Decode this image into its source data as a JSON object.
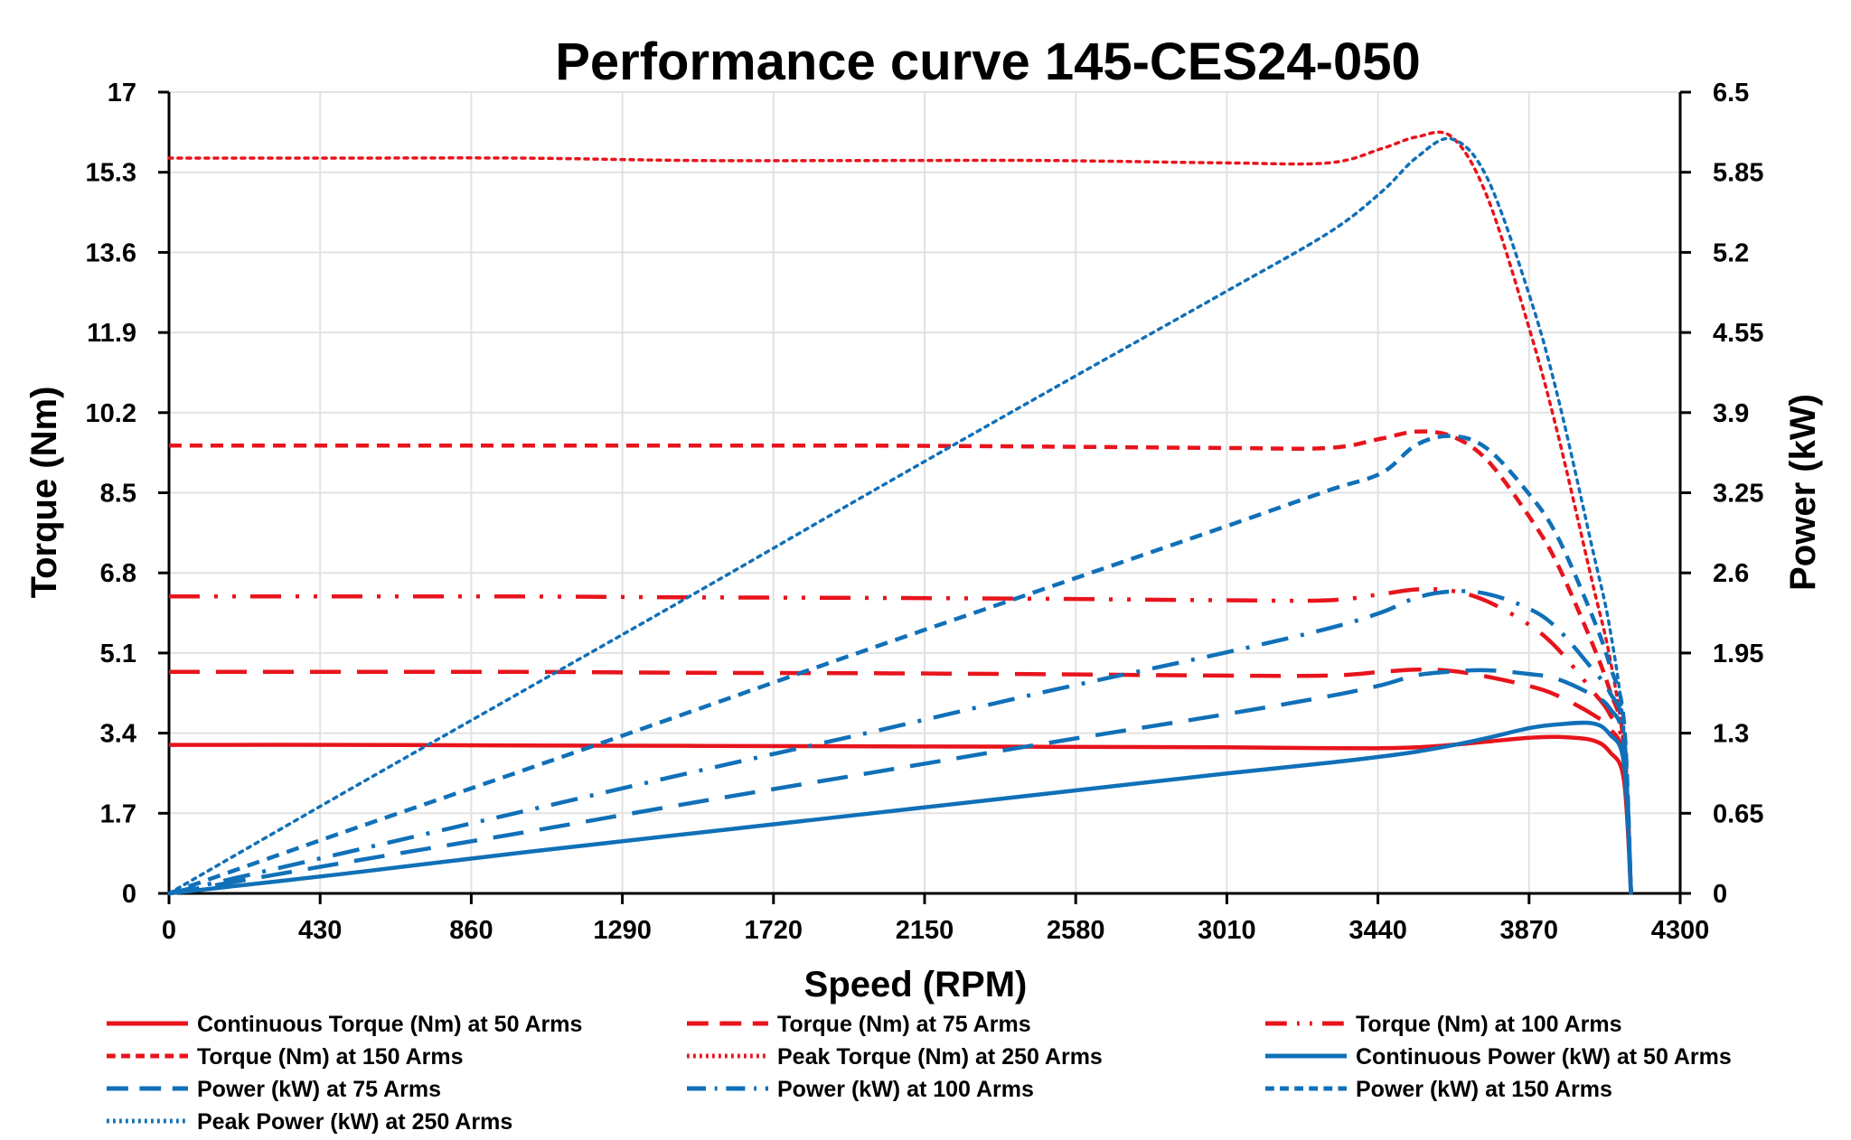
{
  "chart_data": {
    "type": "line",
    "title": "Performance curve 145-CES24-050",
    "xlabel": "Speed (RPM)",
    "ylabel": "Torque (Nm)",
    "y2label": "Power (kW)",
    "xlim": [
      0,
      4300
    ],
    "ylim": [
      0,
      17
    ],
    "y2lim": [
      0,
      6.5
    ],
    "grid": true,
    "legend_position": "bottom",
    "x_ticks": [
      "0",
      "430",
      "860",
      "1290",
      "1720",
      "2150",
      "2580",
      "3010",
      "3440",
      "3870",
      "4300"
    ],
    "y_ticks": [
      "0",
      "1.7",
      "3.4",
      "5.1",
      "6.8",
      "8.5",
      "10.2",
      "11.9",
      "13.6",
      "15.3",
      "17"
    ],
    "y2_ticks": [
      "0",
      "0.65",
      "1.3",
      "1.95",
      "2.6",
      "3.25",
      "3.9",
      "4.55",
      "5.2",
      "5.85",
      "6.5"
    ],
    "colors": {
      "torque": "#e8141c",
      "power": "#1070b8"
    },
    "x": [
      0,
      500,
      1000,
      1500,
      2000,
      2500,
      3000,
      3300,
      3450,
      3550,
      3650,
      3750,
      3870,
      3950,
      4050,
      4100,
      4140,
      4160
    ],
    "series": [
      {
        "name": "Continuous Torque (Nm) at 50 Arms",
        "axis": "left",
        "color": "#e8141c",
        "style": "solid",
        "values": [
          3.15,
          3.15,
          3.14,
          3.13,
          3.12,
          3.11,
          3.1,
          3.08,
          3.08,
          3.1,
          3.15,
          3.22,
          3.3,
          3.32,
          3.25,
          3.0,
          2.4,
          0
        ]
      },
      {
        "name": "Torque (Nm) at 75 Arms",
        "axis": "left",
        "color": "#e8141c",
        "style": "long-dash",
        "values": [
          4.7,
          4.7,
          4.7,
          4.68,
          4.67,
          4.65,
          4.62,
          4.62,
          4.7,
          4.75,
          4.72,
          4.6,
          4.4,
          4.2,
          3.8,
          3.5,
          2.8,
          0
        ]
      },
      {
        "name": "Torque (Nm) at 100 Arms",
        "axis": "left",
        "color": "#e8141c",
        "style": "long-dash-dot-dot",
        "values": [
          6.3,
          6.3,
          6.3,
          6.28,
          6.27,
          6.25,
          6.22,
          6.22,
          6.35,
          6.45,
          6.42,
          6.2,
          5.7,
          5.2,
          4.3,
          3.8,
          3.0,
          0
        ]
      },
      {
        "name": "Torque (Nm) at 150 Arms",
        "axis": "left",
        "color": "#e8141c",
        "style": "dash",
        "values": [
          9.5,
          9.5,
          9.5,
          9.5,
          9.5,
          9.48,
          9.45,
          9.45,
          9.65,
          9.8,
          9.7,
          9.2,
          8.0,
          7.0,
          5.3,
          4.3,
          3.2,
          0
        ]
      },
      {
        "name": "Peak Torque (Nm) at 250 Arms",
        "axis": "left",
        "color": "#e8141c",
        "style": "dot",
        "values": [
          15.6,
          15.6,
          15.6,
          15.55,
          15.55,
          15.55,
          15.5,
          15.5,
          15.8,
          16.05,
          16.05,
          14.8,
          12.0,
          9.8,
          6.6,
          5.0,
          3.0,
          0
        ]
      },
      {
        "name": "Continuous Power (kW) at 50 Arms",
        "axis": "right",
        "color": "#1070b8",
        "style": "solid",
        "values": [
          0,
          0.16,
          0.33,
          0.49,
          0.65,
          0.81,
          0.97,
          1.06,
          1.11,
          1.15,
          1.2,
          1.26,
          1.34,
          1.37,
          1.38,
          1.29,
          1.05,
          0
        ]
      },
      {
        "name": "Power (kW) at 75 Arms",
        "axis": "right",
        "color": "#1070b8",
        "style": "long-dash",
        "values": [
          0,
          0.25,
          0.49,
          0.74,
          0.98,
          1.22,
          1.45,
          1.6,
          1.69,
          1.77,
          1.8,
          1.81,
          1.78,
          1.74,
          1.61,
          1.5,
          1.21,
          0
        ]
      },
      {
        "name": "Power (kW) at 100 Arms",
        "axis": "right",
        "color": "#1070b8",
        "style": "dash-dot",
        "values": [
          0,
          0.33,
          0.66,
          0.99,
          1.31,
          1.64,
          1.95,
          2.15,
          2.28,
          2.4,
          2.45,
          2.43,
          2.31,
          2.15,
          1.82,
          1.63,
          1.3,
          0
        ]
      },
      {
        "name": "Power (kW) at 150 Arms",
        "axis": "right",
        "color": "#1070b8",
        "style": "dash",
        "values": [
          0,
          0.5,
          0.99,
          1.49,
          1.99,
          2.48,
          2.97,
          3.27,
          3.41,
          3.64,
          3.71,
          3.61,
          3.24,
          2.9,
          2.25,
          1.85,
          1.39,
          0
        ]
      },
      {
        "name": "Peak Power (kW) at 250 Arms",
        "axis": "right",
        "color": "#1070b8",
        "style": "dot",
        "values": [
          0,
          0.82,
          1.63,
          2.44,
          3.26,
          4.07,
          4.87,
          5.36,
          5.69,
          5.97,
          6.12,
          5.81,
          4.86,
          4.05,
          2.8,
          2.15,
          1.3,
          0
        ]
      }
    ]
  }
}
